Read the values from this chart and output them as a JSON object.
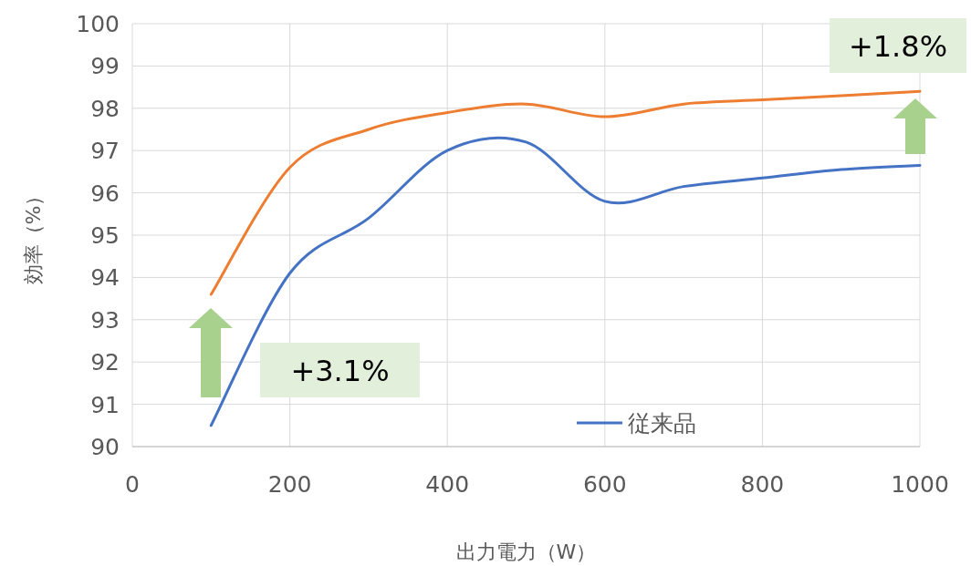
{
  "chart_data": {
    "type": "line",
    "xlabel": "出力電力（W）",
    "ylabel": "効率（%）",
    "x": [
      100,
      200,
      300,
      400,
      500,
      600,
      700,
      800,
      900,
      1000
    ],
    "series": [
      {
        "name": "従来品",
        "color": "#4472c4",
        "values": [
          90.5,
          94.1,
          95.4,
          97.0,
          97.2,
          95.8,
          96.15,
          96.35,
          96.55,
          96.65
        ]
      },
      {
        "color": "#ed7d31",
        "values": [
          93.6,
          96.6,
          97.5,
          97.9,
          98.1,
          97.8,
          98.1,
          98.2,
          98.3,
          98.4
        ]
      }
    ],
    "xlim": [
      0,
      1000
    ],
    "xticks": [
      0,
      200,
      400,
      600,
      800,
      1000
    ],
    "ylim": [
      90,
      100
    ],
    "yticks": [
      90,
      91,
      92,
      93,
      94,
      95,
      96,
      97,
      98,
      99,
      100
    ],
    "grid": true,
    "legend": "bottom right",
    "marker": "none",
    "line_style": "solid",
    "annotations": [
      "+3.1%",
      "+1.8%"
    ]
  }
}
